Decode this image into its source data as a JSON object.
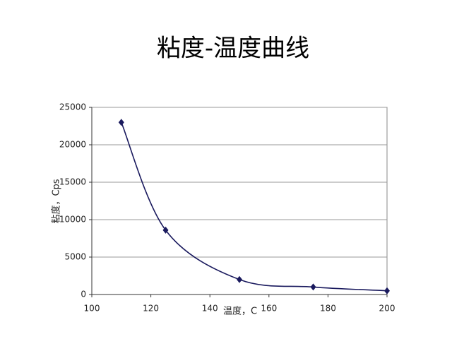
{
  "chart_data": {
    "type": "line",
    "title": "粘度-温度曲线",
    "x_label": "温度，C",
    "y_label": "粘度，Cps",
    "x": [
      110,
      125,
      150,
      175,
      200
    ],
    "values": [
      23000,
      8600,
      2000,
      1000,
      500
    ],
    "color": "#1a1a5e",
    "xlim": [
      100,
      200
    ],
    "xticks": [
      100,
      120,
      140,
      160,
      180,
      200
    ],
    "ylim": [
      0,
      25000
    ],
    "yticks": [
      0,
      5000,
      10000,
      15000,
      20000,
      25000
    ],
    "grid": true,
    "smooth": true
  }
}
